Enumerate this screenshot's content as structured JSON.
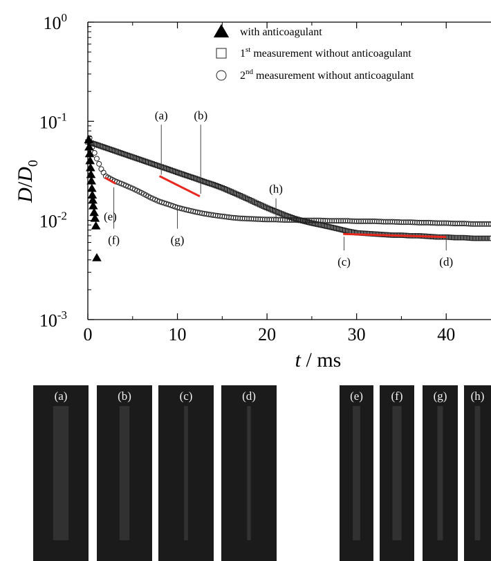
{
  "chart_data": {
    "type": "scatter",
    "x_scale": "linear",
    "y_scale": "log",
    "xlim": [
      0,
      45
    ],
    "ylim": [
      0.001,
      1
    ],
    "xlabel": "t / ms",
    "ylabel": "D/D0",
    "x_ticks": [
      "0",
      "10",
      "20",
      "30",
      "40"
    ],
    "y_ticks": [
      {
        "base": "10",
        "exp": "0"
      },
      {
        "base": "10",
        "exp": "-1"
      },
      {
        "base": "10",
        "exp": "-2"
      },
      {
        "base": "10",
        "exp": "-3"
      }
    ],
    "legend_position": "top-right",
    "legend": [
      {
        "marker": "filled-triangle",
        "text": "with anticoagulant"
      },
      {
        "marker": "open-square",
        "pre": "1",
        "sup": "st",
        "post": " measurement without anticoagulant"
      },
      {
        "marker": "open-circle",
        "pre": "2",
        "sup": "nd",
        "post": " measurement without anticoagulant"
      }
    ],
    "series": [
      {
        "marker": "filled-triangle",
        "points": [
          [
            0.1,
            0.065
          ],
          [
            0.15,
            0.055
          ],
          [
            0.2,
            0.047
          ],
          [
            0.25,
            0.04
          ],
          [
            0.3,
            0.034
          ],
          [
            0.35,
            0.029
          ],
          [
            0.4,
            0.025
          ],
          [
            0.45,
            0.021
          ],
          [
            0.5,
            0.018
          ],
          [
            0.55,
            0.016
          ],
          [
            0.6,
            0.014
          ],
          [
            0.7,
            0.012
          ],
          [
            0.8,
            0.0105
          ],
          [
            0.9,
            0.0088
          ],
          [
            1.0,
            0.0042
          ]
        ]
      },
      {
        "marker": "open-square",
        "points": "0:0.062,1:0.058,2:0.054,3:0.0503,4:0.0468,5:0.0436,6:0.0406,7:0.0378,8:0.0352,9:0.0328,10:0.0305,11:0.0284,12:0.0265,13:0.0246,14:0.023,15:0.0213,16:0.0195,17:0.0178,18:0.0162,19:0.0147,20:0.0134,21:0.0123,22:0.0113,23:0.0105,24:0.0099,25:0.0094,26:0.009,27:0.0086,28:0.0082,29:0.0078,30:0.0075,31:0.0074,32:0.0073,33:0.0072,34:0.0071,35:0.0071,36:0.007,37:0.007,38:0.0069,39:0.0068,40:0.0068,41:0.0067,42:0.0067,43:0.0066,44:0.0066,45:0.0066"
      },
      {
        "marker": "open-circle",
        "points": "0.2:0.068,0.5:0.055,1:0.042,1.5:0.033,2:0.028,3:0.025,4:0.023,5:0.021,6:0.019,7:0.017,8:0.0155,9:0.0145,10:0.0135,11:0.0128,12:0.0122,13:0.0117,14:0.0113,15:0.011,16:0.0107,17:0.0105,18:0.0104,19:0.0103,20:0.0102,21:0.0102,22:0.0101,23:0.0101,24:0.01,25:0.01,26:0.01,27:0.0099,28:0.0099,29:0.0099,30:0.0098,31:0.0098,32:0.0098,33:0.0097,34:0.0097,35:0.0096,36:0.0096,37:0.0095,38:0.0095,39:0.0094,40:0.0094,41:0.0093,42:0.0093,43:0.0092,44:0.0092,45:0.0092"
      }
    ],
    "fit_lines": [
      {
        "color": "#e8281e",
        "from": [
          8,
          0.028
        ],
        "to": [
          12.5,
          0.0175
        ]
      },
      {
        "color": "#e8281e",
        "from": [
          1.9,
          0.027
        ],
        "to": [
          3.1,
          0.0235
        ]
      },
      {
        "color": "#e8281e",
        "from": [
          28.5,
          0.0073
        ],
        "to": [
          40,
          0.0068
        ]
      }
    ],
    "annotations": [
      {
        "label": "(a)",
        "x": 8.2,
        "y": 0.028,
        "label_y": 0.105
      },
      {
        "label": "(b)",
        "x": 12.6,
        "y": 0.018,
        "label_y": 0.105
      },
      {
        "label": "(h)",
        "x": 21,
        "y": 0.0102,
        "label_y": 0.019
      },
      {
        "label": "(c)",
        "x": 28.6,
        "y": 0.0073,
        "label_y": 0.0035
      },
      {
        "label": "(d)",
        "x": 40,
        "y": 0.0068,
        "label_y": 0.0035
      },
      {
        "label": "(e)",
        "x": 1.0,
        "y": 0.011,
        "label_y": 0.011,
        "side": "right"
      },
      {
        "label": "(f)",
        "x": 2.9,
        "y": 0.023,
        "label_y": 0.0058
      },
      {
        "label": "(g)",
        "x": 10,
        "y": 0.0135,
        "label_y": 0.0058
      }
    ]
  },
  "photos": {
    "group1": [
      {
        "label": "(a)",
        "neck": 0.28
      },
      {
        "label": "(b)",
        "neck": 0.18
      },
      {
        "label": "(c)",
        "neck": 0.07
      },
      {
        "label": "(d)",
        "neck": 0.07
      }
    ],
    "group2": [
      {
        "label": "(e)",
        "neck": 0.22
      },
      {
        "label": "(f)",
        "neck": 0.26
      },
      {
        "label": "(g)",
        "neck": 0.16
      },
      {
        "label": "(h)",
        "neck": 0.2
      }
    ]
  },
  "colors": {
    "fit": "#e8281e",
    "photo_bg": "#1b1b1b",
    "photo_fluid": "#a9a9a9"
  }
}
